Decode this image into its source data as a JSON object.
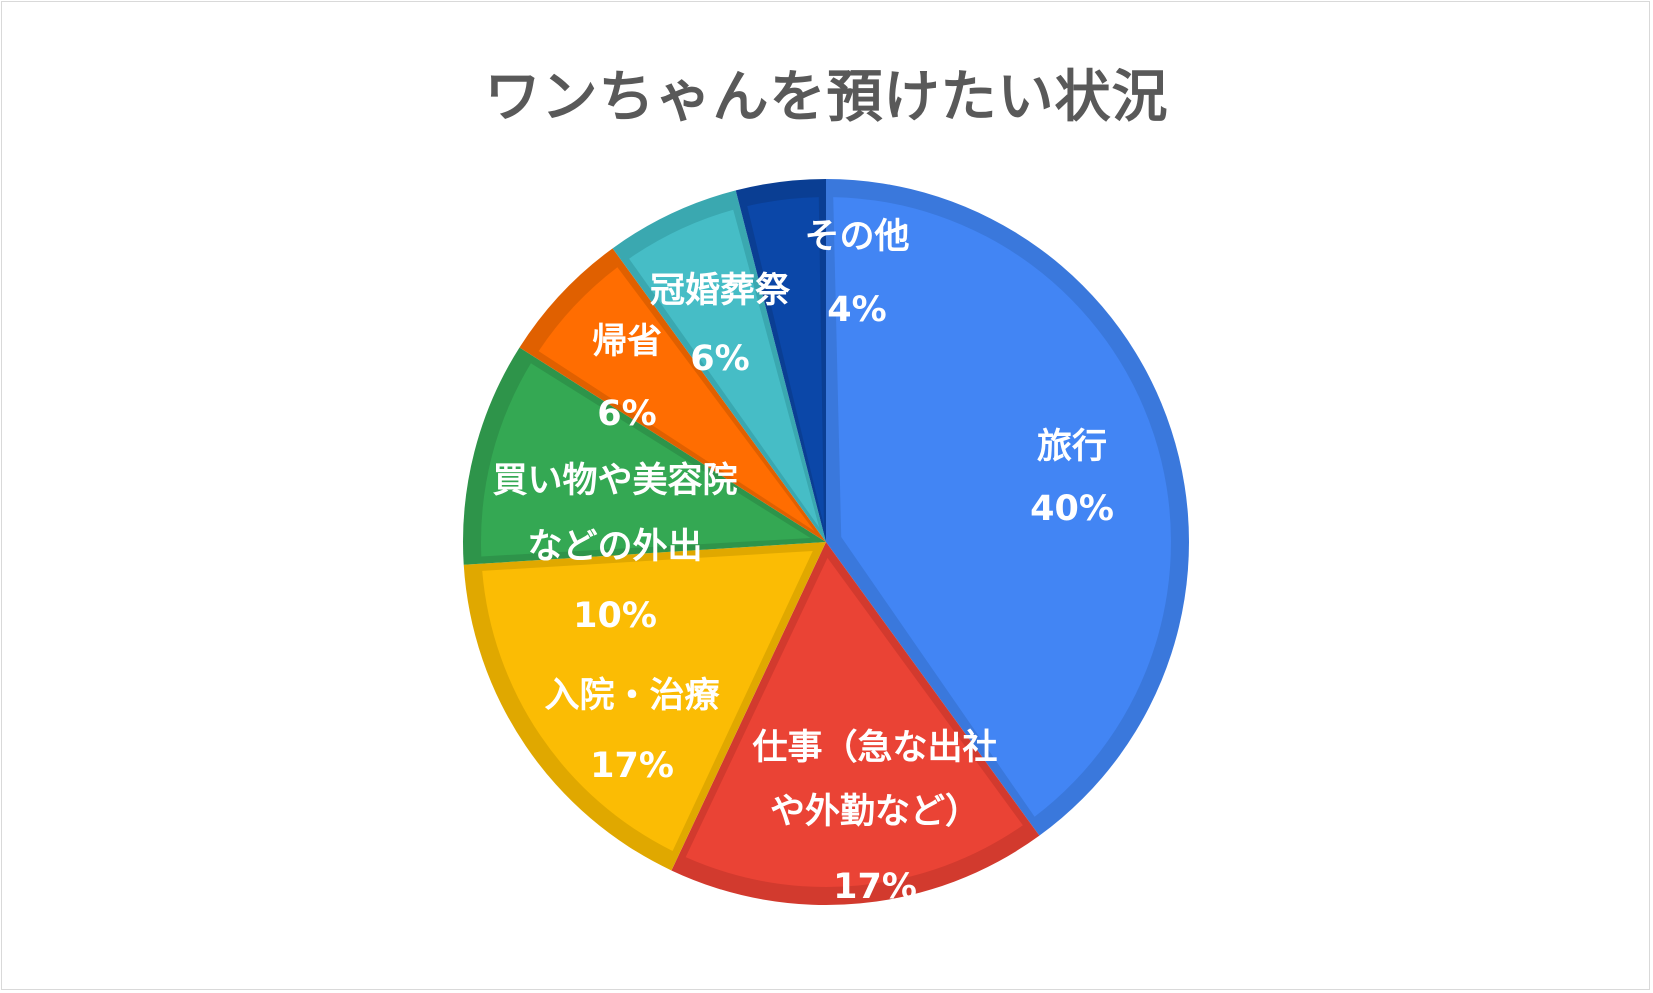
{
  "chart_data": {
    "type": "pie",
    "title": "ワンちゃんを預けたい状況",
    "slices": [
      {
        "label_lines": [
          "旅行"
        ],
        "value": 40,
        "value_label": "40%",
        "color": "#4285F4",
        "edge": "#3A78DC"
      },
      {
        "label_lines": [
          "仕事（急な出社",
          "や外勤など）"
        ],
        "value": 17,
        "value_label": "17%",
        "color": "#EA4335",
        "edge": "#D23A2E"
      },
      {
        "label_lines": [
          "入院・治療"
        ],
        "value": 17,
        "value_label": "17%",
        "color": "#FBBC04",
        "edge": "#E0A800"
      },
      {
        "label_lines": [],
        "value": 10,
        "value_label": "10%",
        "color": "#34A853",
        "edge": "#2E944A"
      },
      {
        "label_lines": [
          "買い物や美容院",
          "などの外出"
        ],
        "value": 10,
        "value_label": "",
        "color": "#34A853",
        "edge": "#2E944A",
        "label_only": true
      },
      {
        "label_lines": [
          "帰省"
        ],
        "value": 6,
        "value_label": "6%",
        "color": "#FF6D01",
        "edge": "#E06000"
      },
      {
        "label_lines": [
          "冠婚葬祭"
        ],
        "value": 6,
        "value_label": "6%",
        "color": "#46BDC6",
        "edge": "#3AA8B0"
      },
      {
        "label_lines": [
          "その他"
        ],
        "value": 4,
        "value_label": "4%",
        "color": "#0B47A8",
        "edge": "#0A3E93"
      }
    ]
  }
}
